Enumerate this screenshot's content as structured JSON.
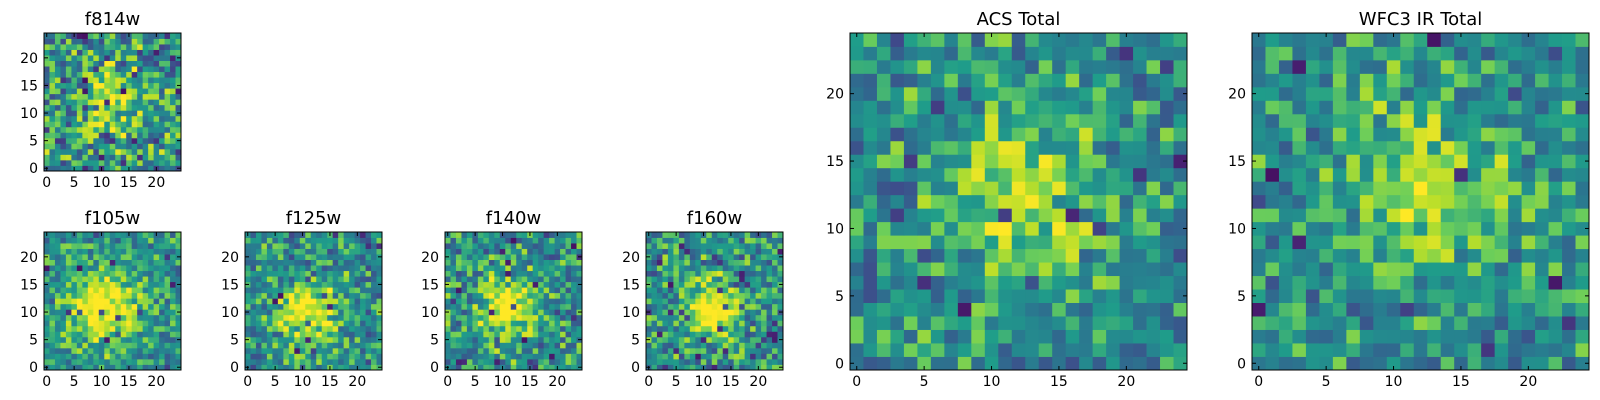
{
  "chart_data": [
    {
      "type": "heatmap",
      "title": "f814w",
      "xticks": [
        "0",
        "5",
        "10",
        "15",
        "20"
      ],
      "yticks": [
        "0",
        "5",
        "10",
        "15",
        "20"
      ],
      "xlim": [
        0,
        25
      ],
      "ylim": [
        0,
        25
      ],
      "colormap": "viridis",
      "grid": false,
      "size": 25,
      "seed": 11,
      "peak": [
        11.5,
        12.5
      ],
      "sigma": 4.0,
      "amp": 0.35,
      "noise": 0.55,
      "dark": 0.05
    },
    {
      "type": "heatmap",
      "title": "f105w",
      "xticks": [
        "0",
        "5",
        "10",
        "15",
        "20"
      ],
      "yticks": [
        "0",
        "5",
        "10",
        "15",
        "20"
      ],
      "xlim": [
        0,
        25
      ],
      "ylim": [
        0,
        25
      ],
      "colormap": "viridis",
      "grid": false,
      "size": 25,
      "seed": 23,
      "peak": [
        10.5,
        11.0
      ],
      "sigma": 5.0,
      "amp": 0.45,
      "noise": 0.38,
      "dark": 0.02
    },
    {
      "type": "heatmap",
      "title": "f125w",
      "xticks": [
        "0",
        "5",
        "10",
        "15",
        "20"
      ],
      "yticks": [
        "0",
        "5",
        "10",
        "15",
        "20"
      ],
      "xlim": [
        0,
        25
      ],
      "ylim": [
        0,
        25
      ],
      "colormap": "viridis",
      "grid": false,
      "size": 25,
      "seed": 37,
      "peak": [
        11.5,
        10.0
      ],
      "sigma": 4.0,
      "amp": 0.4,
      "noise": 0.45,
      "dark": 0.05
    },
    {
      "type": "heatmap",
      "title": "f140w",
      "xticks": [
        "0",
        "5",
        "10",
        "15",
        "20"
      ],
      "yticks": [
        "0",
        "5",
        "10",
        "15",
        "20"
      ],
      "xlim": [
        0,
        25
      ],
      "ylim": [
        0,
        25
      ],
      "colormap": "viridis",
      "grid": false,
      "size": 25,
      "seed": 41,
      "peak": [
        11.0,
        10.5
      ],
      "sigma": 3.8,
      "amp": 0.45,
      "noise": 0.45,
      "dark": 0.05
    },
    {
      "type": "heatmap",
      "title": "f160w",
      "xticks": [
        "0",
        "5",
        "10",
        "15",
        "20"
      ],
      "yticks": [
        "0",
        "5",
        "10",
        "15",
        "20"
      ],
      "xlim": [
        0,
        25
      ],
      "ylim": [
        0,
        25
      ],
      "colormap": "viridis",
      "grid": false,
      "size": 25,
      "seed": 53,
      "peak": [
        12.0,
        10.5
      ],
      "sigma": 3.8,
      "amp": 0.45,
      "noise": 0.45,
      "dark": 0.08
    },
    {
      "type": "heatmap",
      "title": "ACS Total",
      "xticks": [
        "0",
        "5",
        "10",
        "15",
        "20"
      ],
      "yticks": [
        "0",
        "5",
        "10",
        "15",
        "20"
      ],
      "xlim": [
        0,
        25
      ],
      "ylim": [
        0,
        25
      ],
      "colormap": "viridis",
      "grid": false,
      "size": 25,
      "seed": 67,
      "peak": [
        12.0,
        12.5
      ],
      "sigma": 4.2,
      "amp": 0.3,
      "noise": 0.4,
      "dark": 0.025
    },
    {
      "type": "heatmap",
      "title": "WFC3 IR Total",
      "xticks": [
        "0",
        "5",
        "10",
        "15",
        "20"
      ],
      "yticks": [
        "0",
        "5",
        "10",
        "15",
        "20"
      ],
      "xlim": [
        0,
        25
      ],
      "ylim": [
        0,
        25
      ],
      "colormap": "viridis",
      "grid": false,
      "size": 25,
      "seed": 79,
      "peak": [
        12.5,
        13.0
      ],
      "sigma": 4.2,
      "amp": 0.3,
      "noise": 0.4,
      "dark": 0.025
    }
  ]
}
